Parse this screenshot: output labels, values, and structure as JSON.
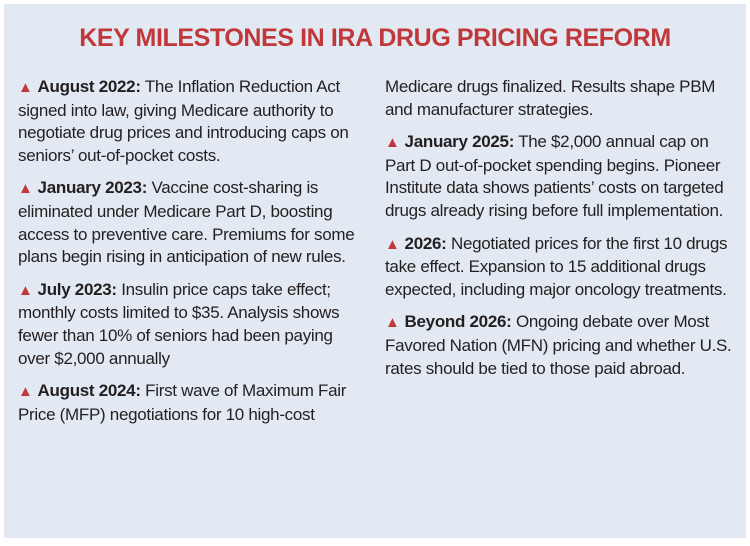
{
  "title": "KEY MILESTONES IN IRA DRUG PRICING REFORM",
  "accent_color": "#c1383a",
  "background_color": "#e2e9f2",
  "bullet_icon": "red-triangle-icon",
  "items": [
    {
      "date": "August 2022:",
      "text": "The Inflation Reduction Act signed into law, giving Medicare authority to negotiate drug prices and introducing caps on seniors’ out-of-pocket costs."
    },
    {
      "date": "January 2023:",
      "text": "Vaccine cost-sharing is eliminated under Medicare Part D, boosting access to preventive care. Premiums for some plans begin rising in anticipation of new rules."
    },
    {
      "date": "July 2023:",
      "text": "Insulin price caps take effect; monthly costs limited to $35. Analysis shows fewer than 10% of seniors had been paying over $2,000 annually"
    },
    {
      "date": "August 2024:",
      "text": "First wave of Maximum Fair Price (MFP) negotiations for 10 high-cost Medicare drugs finalized. Results shape PBM and manufacturer strategies."
    },
    {
      "date": "January 2025:",
      "text": "The $2,000 annual cap on Part D out-of-pocket spending begins. Pioneer Institute data shows patients’ costs on targeted drugs already rising before full implementation."
    },
    {
      "date": "2026:",
      "text": "Negotiated prices for the first 10 drugs take effect. Expansion to 15 additional drugs expected, including major oncology treatments."
    },
    {
      "date": "Beyond 2026:",
      "text": "Ongoing debate over Most Favored Nation (MFN) pricing and whether U.S. rates should be tied to those paid abroad."
    }
  ]
}
